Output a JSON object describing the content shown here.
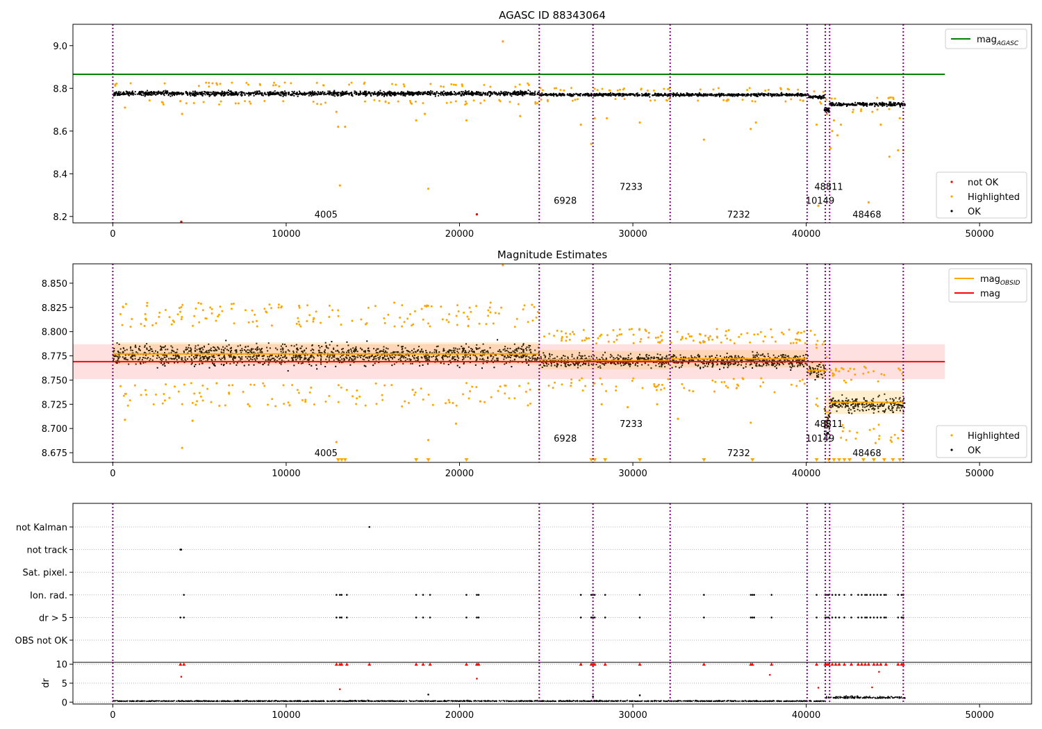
{
  "chart_data": [
    {
      "type": "scatter",
      "title": "AGASC ID 88343064",
      "xlim": [
        -2300,
        53000
      ],
      "ylim": [
        8.17,
        9.1
      ],
      "x_ticks": [
        0,
        10000,
        20000,
        30000,
        40000,
        50000
      ],
      "x_tick_labels": [
        "0",
        "10000",
        "20000",
        "30000",
        "40000",
        "50000"
      ],
      "y_ticks": [
        8.2,
        8.4,
        8.6,
        8.8,
        9.0
      ],
      "y_tick_labels": [
        "8.2",
        "8.4",
        "8.6",
        "8.8",
        "9.0"
      ],
      "mag_agasc": 8.866,
      "mag_agasc_x_range": [
        -2300,
        48000
      ],
      "legend_top": {
        "label": "mag",
        "subscript": "AGASC",
        "color": "#008000",
        "placement": "top-right"
      },
      "legend_bottom": [
        {
          "label": "not OK",
          "color": "#ff0000"
        },
        {
          "label": "Highlighted",
          "color": "#ffa500"
        },
        {
          "label": "OK",
          "color": "#000000"
        }
      ],
      "highlighted_points": [
        [
          22500,
          9.02
        ],
        [
          13000,
          8.62
        ],
        [
          13400,
          8.62
        ],
        [
          13100,
          8.345
        ],
        [
          18200,
          8.33
        ],
        [
          4000,
          8.68
        ],
        [
          3900,
          8.74
        ],
        [
          12900,
          8.69
        ],
        [
          17500,
          8.65
        ],
        [
          18000,
          8.68
        ],
        [
          20400,
          8.65
        ],
        [
          23500,
          8.67
        ],
        [
          27000,
          8.63
        ],
        [
          27600,
          8.54
        ],
        [
          28500,
          8.66
        ],
        [
          27800,
          8.66
        ],
        [
          30400,
          8.64
        ],
        [
          34100,
          8.56
        ],
        [
          36800,
          8.61
        ],
        [
          37100,
          8.64
        ],
        [
          40600,
          8.63
        ],
        [
          41200,
          8.68
        ],
        [
          41600,
          8.65
        ],
        [
          41500,
          8.6
        ],
        [
          41800,
          8.58
        ],
        [
          42000,
          8.63
        ],
        [
          41400,
          8.52
        ],
        [
          44300,
          8.63
        ],
        [
          44800,
          8.48
        ],
        [
          45300,
          8.51
        ],
        [
          43600,
          8.266
        ],
        [
          40700,
          8.25
        ],
        [
          45600,
          8.51
        ],
        [
          45400,
          8.66
        ],
        [
          700,
          8.71
        ]
      ],
      "not_ok_points": [
        [
          3950,
          8.175
        ],
        [
          21000,
          8.21
        ]
      ],
      "ok_trend": [
        {
          "x0": 0,
          "x1": 24600,
          "mid": 8.776,
          "spread": 0.018
        },
        {
          "x0": 24600,
          "x1": 40100,
          "mid": 8.77,
          "spread": 0.011
        },
        {
          "x0": 40100,
          "x1": 41050,
          "mid": 8.76,
          "spread": 0.014
        },
        {
          "x0": 41050,
          "x1": 41350,
          "mid": 8.7,
          "spread": 0.02
        },
        {
          "x0": 41350,
          "x1": 45700,
          "mid": 8.725,
          "spread": 0.013
        }
      ],
      "obsid_boundaries": [
        0,
        24600,
        27700,
        32150,
        40050,
        41100,
        41350,
        45600
      ],
      "obsid_labels": [
        {
          "text": "4005",
          "x": 12300,
          "y": 8.21
        },
        {
          "text": "6928",
          "x": 26100,
          "y": 8.275
        },
        {
          "text": "7233",
          "x": 29900,
          "y": 8.34
        },
        {
          "text": "7232",
          "x": 36100,
          "y": 8.21
        },
        {
          "text": "10149",
          "x": 40800,
          "y": 8.275
        },
        {
          "text": "48811",
          "x": 41300,
          "y": 8.34
        },
        {
          "text": "48468",
          "x": 43500,
          "y": 8.21
        }
      ]
    },
    {
      "type": "scatter",
      "title": "Magnitude Estimates",
      "xlim": [
        -2300,
        53000
      ],
      "ylim": [
        8.665,
        8.87
      ],
      "x_ticks": [
        0,
        10000,
        20000,
        30000,
        40000,
        50000
      ],
      "x_tick_labels": [
        "0",
        "10000",
        "20000",
        "30000",
        "40000",
        "50000"
      ],
      "y_ticks": [
        8.675,
        8.7,
        8.725,
        8.75,
        8.775,
        8.8,
        8.825,
        8.85
      ],
      "y_tick_labels": [
        "8.675",
        "8.700",
        "8.725",
        "8.750",
        "8.775",
        "8.800",
        "8.825",
        "8.850"
      ],
      "mag": 8.769,
      "mag_band": [
        8.751,
        8.787
      ],
      "mag_x_range": [
        -2300,
        48000
      ],
      "mag_obsid_segments": [
        {
          "x0": 0,
          "x1": 24600,
          "value": 8.777,
          "band": [
            8.766,
            8.789
          ]
        },
        {
          "x0": 24600,
          "x1": 27700,
          "value": 8.771,
          "band": [
            8.761,
            8.781
          ]
        },
        {
          "x0": 27700,
          "x1": 32150,
          "value": 8.77,
          "band": [
            8.761,
            8.78
          ]
        },
        {
          "x0": 32150,
          "x1": 40050,
          "value": 8.772,
          "band": [
            8.763,
            8.781
          ]
        },
        {
          "x0": 40050,
          "x1": 41100,
          "value": 8.76,
          "band": [
            8.752,
            8.768
          ]
        },
        {
          "x0": 41100,
          "x1": 41350,
          "value": 8.717,
          "band": [
            8.7,
            8.734
          ]
        },
        {
          "x0": 41350,
          "x1": 45600,
          "value": 8.727,
          "band": [
            8.715,
            8.739
          ]
        }
      ],
      "legend_top": [
        {
          "label": "mag",
          "subscript": "OBSID",
          "color": "#ffa500"
        },
        {
          "label": "mag",
          "color": "#ff0000"
        }
      ],
      "legend_bottom": [
        {
          "label": "Highlighted",
          "color": "#ffa500"
        },
        {
          "label": "OK",
          "color": "#000000"
        }
      ],
      "highlighted_points": [
        [
          22500,
          8.869
        ],
        [
          700,
          8.709
        ],
        [
          4000,
          8.68
        ],
        [
          4600,
          8.708
        ],
        [
          10200,
          8.724
        ],
        [
          7800,
          8.725
        ],
        [
          12900,
          8.686
        ],
        [
          17300,
          8.74
        ],
        [
          18200,
          8.688
        ],
        [
          21200,
          8.728
        ],
        [
          32600,
          8.71
        ],
        [
          36800,
          8.706
        ],
        [
          28200,
          8.725
        ],
        [
          29700,
          8.722
        ],
        [
          31400,
          8.725
        ],
        [
          19800,
          8.705
        ],
        [
          44000,
          8.685
        ],
        [
          45300,
          8.69
        ]
      ],
      "clipped_points_x": [
        13000,
        13200,
        13400,
        17500,
        18200,
        20400,
        27600,
        27800,
        28400,
        30400,
        34100,
        36900,
        40600,
        41300,
        41600,
        41900,
        42200,
        42500,
        43300,
        43900,
        44500,
        45000,
        45400
      ],
      "ok_trend": [
        {
          "x0": 0,
          "x1": 24600,
          "mid": 8.776,
          "spread": 0.018
        },
        {
          "x0": 24600,
          "x1": 40100,
          "mid": 8.77,
          "spread": 0.011
        },
        {
          "x0": 40100,
          "x1": 41050,
          "mid": 8.76,
          "spread": 0.014
        },
        {
          "x0": 41050,
          "x1": 41350,
          "mid": 8.705,
          "spread": 0.03
        },
        {
          "x0": 41350,
          "x1": 45700,
          "mid": 8.725,
          "spread": 0.013
        }
      ],
      "obsid_boundaries": [
        0,
        24600,
        27700,
        32150,
        40050,
        41100,
        41350,
        45600
      ],
      "obsid_labels": [
        {
          "text": "4005",
          "x": 12300,
          "y": 8.675
        },
        {
          "text": "6928",
          "x": 26100,
          "y": 8.69
        },
        {
          "text": "7233",
          "x": 29900,
          "y": 8.705
        },
        {
          "text": "7232",
          "x": 36100,
          "y": 8.675
        },
        {
          "text": "10149",
          "x": 40800,
          "y": 8.69
        },
        {
          "text": "48811",
          "x": 41300,
          "y": 8.705
        },
        {
          "text": "48468",
          "x": 43500,
          "y": 8.675
        }
      ]
    },
    {
      "type": "scatter",
      "title": "",
      "xlim": [
        -2300,
        53000
      ],
      "x_ticks": [
        0,
        10000,
        20000,
        30000,
        40000,
        50000
      ],
      "x_tick_labels": [
        "0",
        "10000",
        "20000",
        "30000",
        "40000",
        "50000"
      ],
      "flag_rows": [
        "not Kalman",
        "not track",
        "Sat. pixel.",
        "Ion. rad.",
        "dr > 5",
        "OBS not OK"
      ],
      "flags": {
        "not Kalman": [
          14800
        ],
        "not track": [
          3900,
          3950
        ],
        "Sat. pixel.": [],
        "Ion. rad.": [
          4100,
          12900,
          13100,
          13200,
          13500,
          17500,
          17900,
          18300,
          20400,
          21000,
          21100,
          27000,
          27600,
          27700,
          27800,
          28400,
          30400,
          34100,
          36800,
          36900,
          37000,
          38000,
          40600,
          41100,
          41200,
          41300,
          41500,
          41700,
          41900,
          42200,
          42600,
          43000,
          43200,
          43400,
          43500,
          43700,
          43900,
          44100,
          44300,
          44500,
          44600,
          45300,
          45500,
          45600
        ],
        "dr > 5": [
          3900,
          4100,
          12900,
          13100,
          13200,
          13500,
          17500,
          17900,
          18300,
          20400,
          21000,
          21100,
          27000,
          27600,
          27700,
          27800,
          28400,
          30400,
          34100,
          36800,
          36900,
          37000,
          38000,
          40600,
          41100,
          41200,
          41300,
          41500,
          41700,
          41900,
          42200,
          42600,
          43000,
          43200,
          43400,
          43500,
          43700,
          43900,
          44100,
          44300,
          44500,
          44600,
          45300,
          45500,
          45600
        ],
        "OBS not OK": []
      },
      "dr_ylabel": "dr",
      "dr_ylim": [
        -0.5,
        10.5
      ],
      "dr_yticks": [
        0,
        5,
        10
      ],
      "dr_ytick_labels": [
        "0",
        "5",
        "10"
      ],
      "dr_clipped_x": [
        3900,
        4100,
        12900,
        13100,
        13200,
        13500,
        14800,
        17500,
        17900,
        18300,
        20400,
        21000,
        21100,
        27000,
        27600,
        27700,
        27800,
        28400,
        30400,
        34100,
        36800,
        36900,
        38000,
        40600,
        41100,
        41200,
        41300,
        41500,
        41700,
        41900,
        42200,
        42600,
        43000,
        43200,
        43400,
        43600,
        43900,
        44100,
        44300,
        44600,
        45300,
        45500,
        45600
      ],
      "dr_points": [
        [
          3950,
          6.7
        ],
        [
          13100,
          3.4
        ],
        [
          21000,
          6.2
        ],
        [
          37900,
          7.2
        ],
        [
          40700,
          3.8
        ],
        [
          43800,
          3.9
        ],
        [
          44200,
          8.0
        ],
        [
          18200,
          2.0
        ],
        [
          30400,
          1.8
        ],
        [
          27700,
          1.5
        ]
      ],
      "dr_baseline": [
        {
          "x0": 0,
          "x1": 41100,
          "level": 0.2
        },
        {
          "x0": 41100,
          "x1": 45700,
          "level": 1.0
        }
      ],
      "obsid_boundaries": [
        0,
        24600,
        27700,
        32150,
        40050,
        41100,
        41350,
        45600
      ]
    }
  ]
}
